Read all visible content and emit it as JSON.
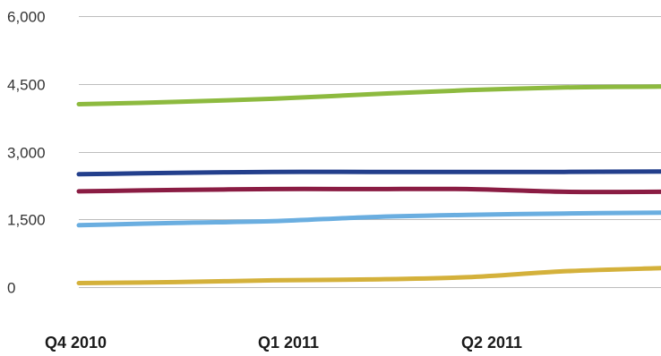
{
  "chart_data": {
    "type": "line",
    "title": "",
    "xlabel": "",
    "ylabel": "",
    "ylim": [
      0,
      6000
    ],
    "yticks": [
      {
        "value": 0,
        "label": "0"
      },
      {
        "value": 1500,
        "label": "1,500"
      },
      {
        "value": 3000,
        "label": "3,000"
      },
      {
        "value": 4500,
        "label": "4,500"
      },
      {
        "value": 6000,
        "label": "6,000"
      }
    ],
    "xticks": [
      "Q4 2010",
      "Q1 2011",
      "Q2 2011"
    ],
    "x": [
      0,
      0.5,
      1,
      1.5,
      2,
      2.5,
      3
    ],
    "grid": true,
    "legend": "none",
    "series": [
      {
        "color": "#8dba3f",
        "values": [
          4050,
          4100,
          4170,
          4270,
          4360,
          4420,
          4440
        ]
      },
      {
        "color": "#233f8c",
        "values": [
          2500,
          2530,
          2550,
          2550,
          2550,
          2550,
          2560
        ]
      },
      {
        "color": "#8a1c43",
        "values": [
          2120,
          2150,
          2170,
          2170,
          2170,
          2110,
          2110
        ]
      },
      {
        "color": "#6aaee0",
        "values": [
          1370,
          1420,
          1460,
          1550,
          1600,
          1630,
          1650
        ]
      },
      {
        "color": "#d4b13b",
        "values": [
          90,
          110,
          150,
          170,
          220,
          350,
          420
        ]
      }
    ]
  }
}
